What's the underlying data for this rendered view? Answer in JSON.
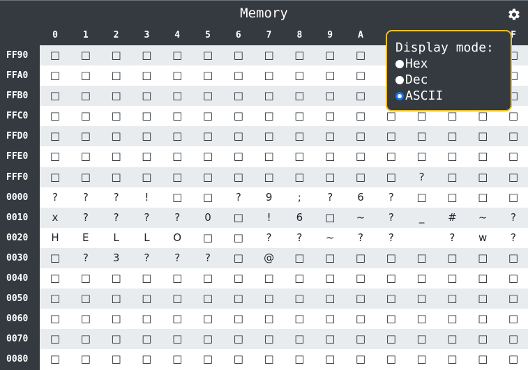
{
  "title": "Memory",
  "settings_icon": "gear-icon",
  "columns": [
    "0",
    "1",
    "2",
    "3",
    "4",
    "5",
    "6",
    "7",
    "8",
    "9",
    "A",
    "B",
    "C",
    "D",
    "E",
    "F"
  ],
  "rows": [
    {
      "addr": "FF90",
      "cells": [
        "□",
        "□",
        "□",
        "□",
        "□",
        "□",
        "□",
        "□",
        "□",
        "□",
        "□",
        "□",
        "□",
        "□",
        "□",
        "□"
      ]
    },
    {
      "addr": "FFA0",
      "cells": [
        "□",
        "□",
        "□",
        "□",
        "□",
        "□",
        "□",
        "□",
        "□",
        "□",
        "□",
        "□",
        "□",
        "□",
        "□",
        "□"
      ]
    },
    {
      "addr": "FFB0",
      "cells": [
        "□",
        "□",
        "□",
        "□",
        "□",
        "□",
        "□",
        "□",
        "□",
        "□",
        "□",
        "□",
        "□",
        "□",
        "□",
        "□"
      ]
    },
    {
      "addr": "FFC0",
      "cells": [
        "□",
        "□",
        "□",
        "□",
        "□",
        "□",
        "□",
        "□",
        "□",
        "□",
        "□",
        "□",
        "□",
        "□",
        "□",
        "□"
      ]
    },
    {
      "addr": "FFD0",
      "cells": [
        "□",
        "□",
        "□",
        "□",
        "□",
        "□",
        "□",
        "□",
        "□",
        "□",
        "□",
        "□",
        "□",
        "□",
        "□",
        "□"
      ]
    },
    {
      "addr": "FFE0",
      "cells": [
        "□",
        "□",
        "□",
        "□",
        "□",
        "□",
        "□",
        "□",
        "□",
        "□",
        "□",
        "□",
        "□",
        "□",
        "□",
        "□"
      ]
    },
    {
      "addr": "FFF0",
      "cells": [
        "□",
        "□",
        "□",
        "□",
        "□",
        "□",
        "□",
        "□",
        "□",
        "□",
        "□",
        "□",
        "?",
        "□",
        "□",
        "□"
      ]
    },
    {
      "addr": "0000",
      "cells": [
        "?",
        "?",
        "?",
        "!",
        "□",
        "□",
        "?",
        "9",
        ";",
        "?",
        "6",
        "?",
        "□",
        "□",
        "□",
        "□"
      ]
    },
    {
      "addr": "0010",
      "cells": [
        "x",
        "?",
        "?",
        "?",
        "?",
        "0",
        "□",
        "!",
        "6",
        "□",
        "~",
        "?",
        "_",
        "#",
        "~",
        "?"
      ]
    },
    {
      "addr": "0020",
      "cells": [
        "H",
        "E",
        "L",
        "L",
        "O",
        "□",
        "□",
        "?",
        "?",
        "~",
        "?",
        "?",
        "",
        "?",
        "w",
        "?"
      ]
    },
    {
      "addr": "0030",
      "cells": [
        "□",
        "?",
        "3",
        "?",
        "?",
        "?",
        "□",
        "@",
        "□",
        "□",
        "□",
        "□",
        "□",
        "□",
        "□",
        "□"
      ]
    },
    {
      "addr": "0040",
      "cells": [
        "□",
        "□",
        "□",
        "□",
        "□",
        "□",
        "□",
        "□",
        "□",
        "□",
        "□",
        "□",
        "□",
        "□",
        "□",
        "□"
      ]
    },
    {
      "addr": "0050",
      "cells": [
        "□",
        "□",
        "□",
        "□",
        "□",
        "□",
        "□",
        "□",
        "□",
        "□",
        "□",
        "□",
        "□",
        "□",
        "□",
        "□"
      ]
    },
    {
      "addr": "0060",
      "cells": [
        "□",
        "□",
        "□",
        "□",
        "□",
        "□",
        "□",
        "□",
        "□",
        "□",
        "□",
        "□",
        "□",
        "□",
        "□",
        "□"
      ]
    },
    {
      "addr": "0070",
      "cells": [
        "□",
        "□",
        "□",
        "□",
        "□",
        "□",
        "□",
        "□",
        "□",
        "□",
        "□",
        "□",
        "□",
        "□",
        "□",
        "□"
      ]
    },
    {
      "addr": "0080",
      "cells": [
        "□",
        "□",
        "□",
        "□",
        "□",
        "□",
        "□",
        "□",
        "□",
        "□",
        "□",
        "□",
        "□",
        "□",
        "□",
        "□"
      ]
    }
  ],
  "display_mode": {
    "heading": "Display mode:",
    "options": [
      {
        "label": "Hex",
        "checked": false
      },
      {
        "label": "Dec",
        "checked": false
      },
      {
        "label": "ASCII",
        "checked": true
      }
    ]
  },
  "colors": {
    "background": "#343a40",
    "row_light": "#ffffff",
    "row_alt": "#e9ecef",
    "popup_border": "#f0c020",
    "radio_accent": "#1a73e8"
  }
}
